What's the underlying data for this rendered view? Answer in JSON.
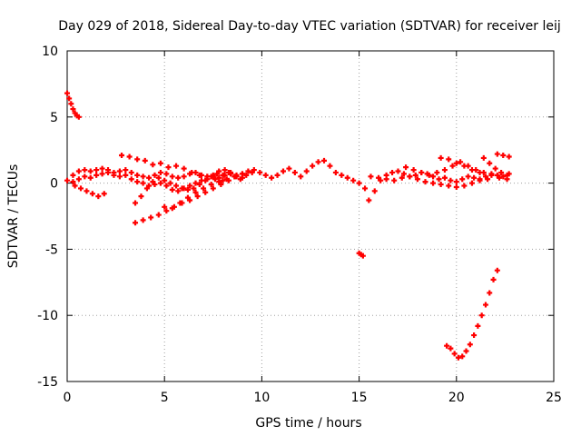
{
  "chart_data": {
    "type": "scatter",
    "title": "Day 029 of 2018, Sidereal Day-to-day VTEC variation (SDTVAR) for receiver leij",
    "xlabel": "GPS time / hours",
    "ylabel": "SDTVAR / TECUs",
    "xlim": [
      0,
      25
    ],
    "ylim": [
      -15,
      10
    ],
    "xticks": [
      0,
      5,
      10,
      15,
      20,
      25
    ],
    "yticks": [
      -15,
      -10,
      -5,
      0,
      5,
      10
    ],
    "grid": true,
    "legend": "none",
    "marker": "plus",
    "color": "#ff0000",
    "series": [
      {
        "x": [
          0.0,
          0.1,
          0.2,
          0.3,
          0.4,
          0.5,
          0.6
        ],
        "y": [
          6.8,
          6.4,
          6.0,
          5.6,
          5.3,
          5.1,
          5.0
        ]
      },
      {
        "x": [
          0.0,
          0.3,
          0.6,
          0.9,
          1.2,
          1.5,
          1.8,
          2.1,
          2.4,
          2.7,
          3.0,
          3.3,
          3.6,
          3.9,
          4.2,
          4.5,
          4.8,
          5.1,
          5.4,
          5.7,
          6.0,
          6.3,
          6.6,
          6.9,
          7.2,
          7.5,
          7.8,
          8.1,
          8.4,
          8.7,
          9.0,
          9.3,
          9.6,
          9.9,
          10.2,
          10.5,
          10.8,
          11.1,
          11.4,
          11.7,
          12.0,
          12.3,
          12.6,
          12.9,
          13.2,
          13.5,
          13.8,
          14.1,
          14.4,
          14.7,
          15.0,
          15.3
        ],
        "y": [
          0.2,
          0.6,
          0.9,
          1.0,
          0.9,
          1.0,
          1.1,
          1.0,
          0.8,
          0.9,
          1.0,
          0.8,
          0.6,
          0.5,
          0.4,
          0.6,
          0.8,
          0.7,
          0.5,
          0.4,
          0.5,
          0.7,
          0.8,
          0.6,
          0.5,
          0.6,
          0.9,
          1.0,
          0.8,
          0.6,
          0.7,
          0.9,
          1.0,
          0.8,
          0.6,
          0.4,
          0.6,
          0.9,
          1.1,
          0.8,
          0.5,
          0.9,
          1.3,
          1.6,
          1.7,
          1.3,
          0.8,
          0.6,
          0.4,
          0.2,
          0.0,
          -0.4
        ]
      },
      {
        "x": [
          0.3,
          0.6,
          0.9,
          1.2,
          1.5,
          1.8,
          2.1,
          2.4,
          2.7,
          3.0,
          3.3,
          3.6,
          3.9,
          4.2,
          4.5,
          4.8,
          5.1,
          5.4,
          5.7,
          6.0,
          6.3,
          6.6,
          6.9,
          7.2,
          7.5,
          7.8,
          8.1,
          8.4,
          8.7,
          9.0
        ],
        "y": [
          0.1,
          0.3,
          0.5,
          0.4,
          0.6,
          0.7,
          0.8,
          0.6,
          0.5,
          0.6,
          0.3,
          0.1,
          0.0,
          -0.2,
          -0.1,
          0.0,
          -0.2,
          -0.5,
          -0.6,
          -0.4,
          -0.2,
          0.0,
          0.2,
          0.3,
          0.5,
          0.4,
          0.6,
          0.7,
          0.5,
          0.4
        ]
      },
      {
        "x": [
          0.4,
          0.7,
          1.0,
          1.3,
          1.6,
          1.9
        ],
        "y": [
          -0.2,
          -0.4,
          -0.6,
          -0.8,
          -1.0,
          -0.8
        ]
      },
      {
        "x": [
          2.8,
          3.2,
          3.6,
          4.0,
          4.4,
          4.8,
          5.2,
          5.6,
          6.0,
          6.4,
          6.8,
          7.2,
          7.6,
          8.0
        ],
        "y": [
          2.1,
          2.0,
          1.8,
          1.7,
          1.4,
          1.5,
          1.2,
          1.3,
          1.1,
          0.8,
          0.6,
          0.5,
          0.3,
          0.2
        ]
      },
      {
        "x": [
          3.5,
          3.8,
          4.1,
          4.4,
          4.7,
          5.0,
          5.3,
          5.6,
          5.9,
          6.2,
          6.5,
          6.8,
          7.1,
          7.4,
          7.7,
          8.0,
          8.3,
          8.6,
          8.9,
          9.2,
          9.5
        ],
        "y": [
          -1.5,
          -1.0,
          -0.4,
          0.1,
          0.4,
          0.2,
          0.0,
          -0.2,
          -0.4,
          -0.5,
          -0.4,
          -0.1,
          0.2,
          0.5,
          0.7,
          0.6,
          0.8,
          0.5,
          0.3,
          0.6,
          0.8
        ]
      },
      {
        "x": [
          3.5,
          3.9,
          4.3,
          4.7,
          5.1,
          5.5,
          5.9,
          6.3,
          6.7,
          7.1,
          7.5,
          7.9,
          8.3
        ],
        "y": [
          -3.0,
          -2.8,
          -2.6,
          -2.4,
          -2.1,
          -1.8,
          -1.5,
          -1.3,
          -1.0,
          -0.7,
          -0.4,
          -0.1,
          0.2
        ]
      },
      {
        "x": [
          5.0,
          5.4,
          5.8,
          6.2,
          6.6,
          7.0,
          7.4,
          7.8,
          8.2,
          8.6,
          9.0
        ],
        "y": [
          -1.8,
          -1.9,
          -1.5,
          -1.1,
          -0.7,
          -0.4,
          -0.1,
          0.1,
          0.3,
          0.5,
          0.7
        ]
      },
      {
        "x": [
          15.0,
          15.1,
          15.2
        ],
        "y": [
          -5.3,
          -5.4,
          -5.5
        ]
      },
      {
        "x": [
          15.5,
          15.8,
          16.1,
          16.4,
          16.7,
          17.0,
          17.3,
          17.6,
          17.9,
          18.2,
          18.5,
          18.8,
          19.1,
          19.4,
          19.7,
          20.0,
          20.3,
          20.6,
          20.9,
          21.2,
          21.5,
          21.8,
          22.1,
          22.4,
          22.7
        ],
        "y": [
          -1.3,
          -0.6,
          0.2,
          0.6,
          0.8,
          0.9,
          0.7,
          0.5,
          0.6,
          0.8,
          0.7,
          0.5,
          0.3,
          0.4,
          0.2,
          0.1,
          0.3,
          0.5,
          0.4,
          0.3,
          0.5,
          0.7,
          0.6,
          0.5,
          0.7
        ]
      },
      {
        "x": [
          15.6,
          16.0,
          16.4,
          16.8,
          17.2,
          17.6,
          18.0,
          18.4,
          18.8,
          19.2,
          19.6,
          20.0,
          20.4,
          20.8,
          21.2,
          21.6
        ],
        "y": [
          0.5,
          0.4,
          0.3,
          0.2,
          0.4,
          0.5,
          0.3,
          0.1,
          0.0,
          -0.1,
          -0.2,
          -0.3,
          -0.2,
          0.0,
          0.2,
          0.3
        ]
      },
      {
        "x": [
          17.4,
          17.8,
          18.2,
          18.6,
          19.0,
          19.4,
          19.8,
          20.2,
          20.6,
          21.0,
          21.4,
          21.8,
          22.2,
          22.6
        ],
        "y": [
          1.2,
          1.0,
          0.8,
          0.6,
          0.8,
          1.0,
          1.3,
          1.6,
          1.3,
          1.0,
          0.8,
          0.6,
          0.4,
          0.3
        ]
      },
      {
        "x": [
          19.2,
          19.6,
          20.0,
          20.4,
          20.8,
          21.2
        ],
        "y": [
          1.9,
          1.8,
          1.5,
          1.3,
          1.0,
          0.8
        ]
      },
      {
        "x": [
          21.4,
          21.7,
          22.0,
          22.3,
          22.6
        ],
        "y": [
          1.9,
          1.5,
          1.1,
          0.8,
          0.6
        ]
      },
      {
        "x": [
          22.1,
          22.4,
          22.7
        ],
        "y": [
          2.2,
          2.1,
          2.0
        ]
      },
      {
        "x": [
          19.5,
          19.7,
          19.9,
          20.1,
          20.3,
          20.5,
          20.7,
          20.9,
          21.1,
          21.3,
          21.5,
          21.7,
          21.9,
          22.1
        ],
        "y": [
          -12.3,
          -12.5,
          -12.9,
          -13.2,
          -13.1,
          -12.7,
          -12.2,
          -11.5,
          -10.8,
          -10.0,
          -9.2,
          -8.3,
          -7.3,
          -6.6
        ]
      }
    ]
  }
}
